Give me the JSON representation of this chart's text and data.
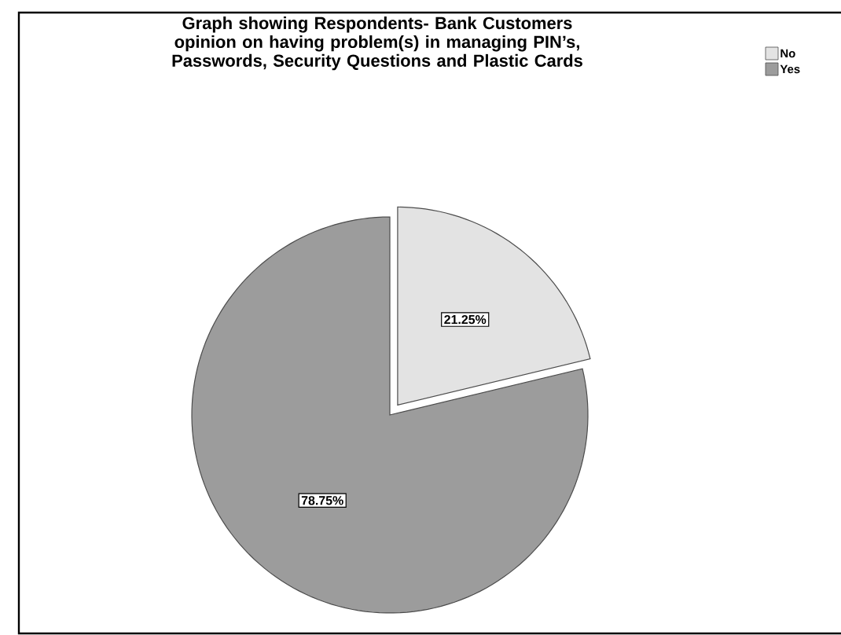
{
  "chart_data": {
    "type": "pie",
    "title": "Graph showing Respondents- Bank Customers opinion on having problem(s) in managing PIN’s, Passwords, Security Questions and Plastic Cards",
    "categories": [
      "No",
      "Yes"
    ],
    "values": [
      21.25,
      78.75
    ],
    "colors": [
      "#e3e3e3",
      "#9c9c9c"
    ],
    "value_labels": [
      "21.25%",
      "78.75%"
    ],
    "legend": "top right"
  }
}
